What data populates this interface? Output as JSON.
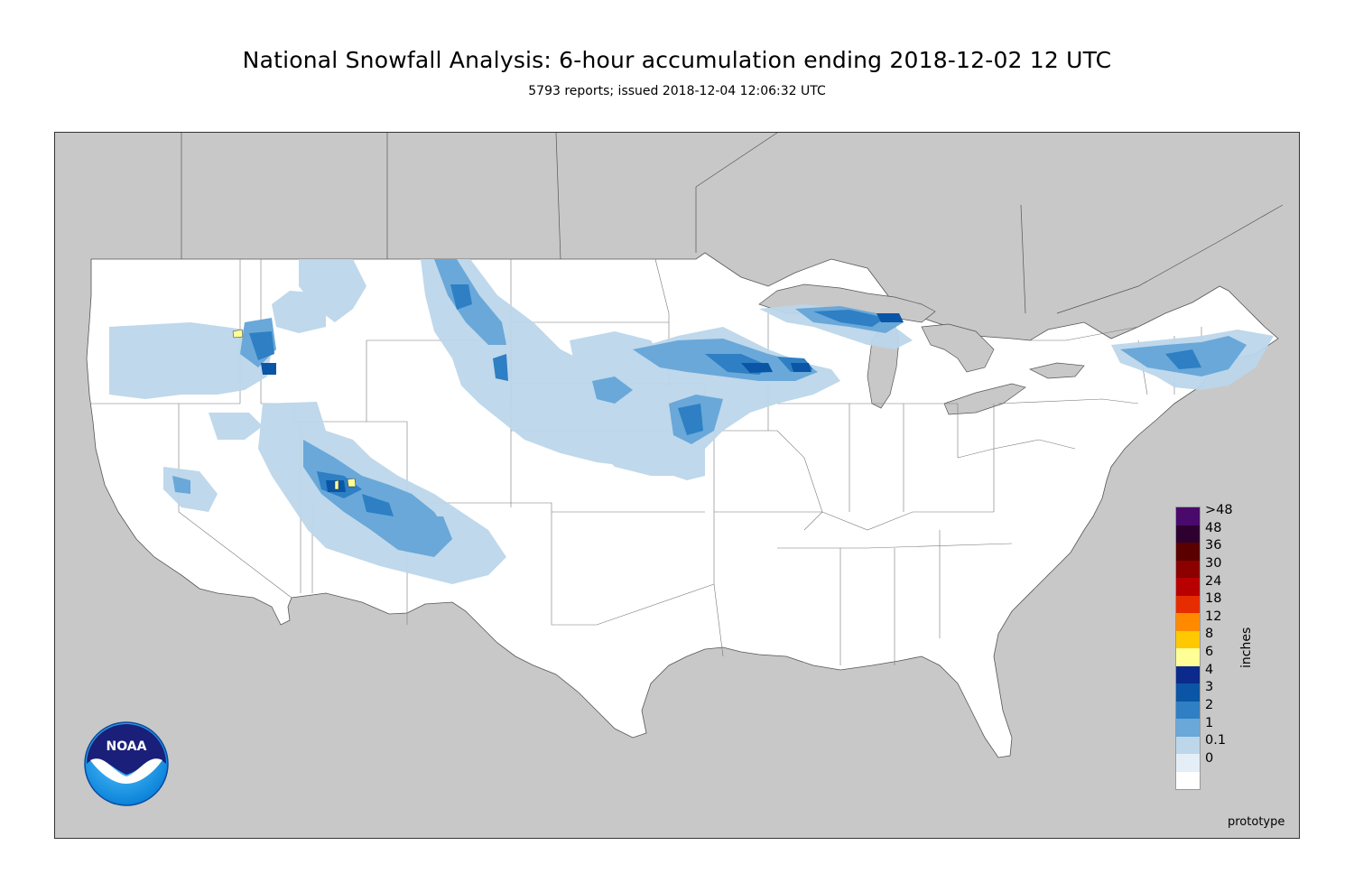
{
  "header": {
    "title": "National Snowfall Analysis: 6-hour accumulation ending 2018-12-02 12 UTC",
    "subtitle": "5793 reports; issued 2018-12-04 12:06:32 UTC"
  },
  "legend": {
    "unit": "inches",
    "bins": [
      {
        "label": ">48",
        "color": "#4a0a6b"
      },
      {
        "label": "48",
        "color": "#2e0030"
      },
      {
        "label": "36",
        "color": "#5a0000"
      },
      {
        "label": "30",
        "color": "#8c0000"
      },
      {
        "label": "24",
        "color": "#b80000"
      },
      {
        "label": "18",
        "color": "#e62d00"
      },
      {
        "label": "12",
        "color": "#ff8a00"
      },
      {
        "label": "8",
        "color": "#ffc800"
      },
      {
        "label": "6",
        "color": "#ffff96"
      },
      {
        "label": "4",
        "color": "#0c2a8c"
      },
      {
        "label": "3",
        "color": "#0a55a5"
      },
      {
        "label": "2",
        "color": "#2e7fc3"
      },
      {
        "label": "1",
        "color": "#69a8d9"
      },
      {
        "label": "0.1",
        "color": "#bcd6ea"
      },
      {
        "label": "0",
        "color": "#e4eef7"
      }
    ],
    "zero_label": "0"
  },
  "footer": {
    "note": "prototype"
  },
  "logo": {
    "text": "NOAA",
    "icon": "noaa-logo-icon"
  },
  "map": {
    "background_color": "#c8c8c8",
    "land_color": "#ffffff",
    "region": "Contiguous United States"
  }
}
